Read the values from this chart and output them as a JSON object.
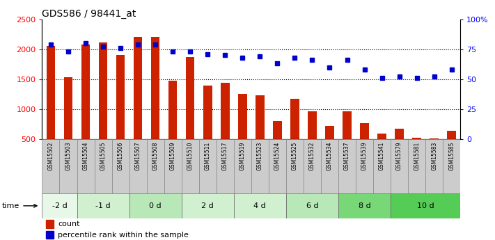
{
  "title": "GDS586 / 98441_at",
  "samples": [
    "GSM15502",
    "GSM15503",
    "GSM15504",
    "GSM15505",
    "GSM15506",
    "GSM15507",
    "GSM15508",
    "GSM15509",
    "GSM15510",
    "GSM15511",
    "GSM15517",
    "GSM15519",
    "GSM15523",
    "GSM15524",
    "GSM15525",
    "GSM15532",
    "GSM15534",
    "GSM15537",
    "GSM15539",
    "GSM15541",
    "GSM15579",
    "GSM15581",
    "GSM15583",
    "GSM15585"
  ],
  "counts": [
    2050,
    1530,
    2080,
    2110,
    1900,
    2210,
    2210,
    1480,
    1870,
    1390,
    1440,
    1260,
    1230,
    800,
    1170,
    970,
    720,
    970,
    770,
    590,
    670,
    520,
    510,
    640
  ],
  "percentiles": [
    79,
    73,
    80,
    77,
    76,
    79,
    79,
    73,
    73,
    71,
    70,
    68,
    69,
    63,
    68,
    66,
    60,
    66,
    58,
    51,
    52,
    51,
    52,
    58
  ],
  "time_groups": [
    {
      "label": "-2 d",
      "start": 0,
      "end": 2,
      "color": "#e8f8e8"
    },
    {
      "label": "-1 d",
      "start": 2,
      "end": 5,
      "color": "#d0f0d0"
    },
    {
      "label": "0 d",
      "start": 5,
      "end": 8,
      "color": "#b8e8b8"
    },
    {
      "label": "2 d",
      "start": 8,
      "end": 11,
      "color": "#d0f0d0"
    },
    {
      "label": "4 d",
      "start": 11,
      "end": 14,
      "color": "#d0f0d0"
    },
    {
      "label": "6 d",
      "start": 14,
      "end": 17,
      "color": "#b8e8b8"
    },
    {
      "label": "8 d",
      "start": 17,
      "end": 20,
      "color": "#78d878"
    },
    {
      "label": "10 d",
      "start": 20,
      "end": 24,
      "color": "#55cc55"
    }
  ],
  "bar_color": "#cc2200",
  "dot_color": "#0000cc",
  "ylim_left": [
    500,
    2500
  ],
  "ylim_right": [
    0,
    100
  ],
  "yticks_left": [
    500,
    1000,
    1500,
    2000,
    2500
  ],
  "yticks_right": [
    0,
    25,
    50,
    75,
    100
  ],
  "yticklabels_right": [
    "0",
    "25",
    "50",
    "75",
    "100%"
  ],
  "legend_count_label": "count",
  "legend_pct_label": "percentile rank within the sample",
  "bar_width": 0.5,
  "plot_bg": "#ffffff",
  "xtick_bg": "#cccccc"
}
